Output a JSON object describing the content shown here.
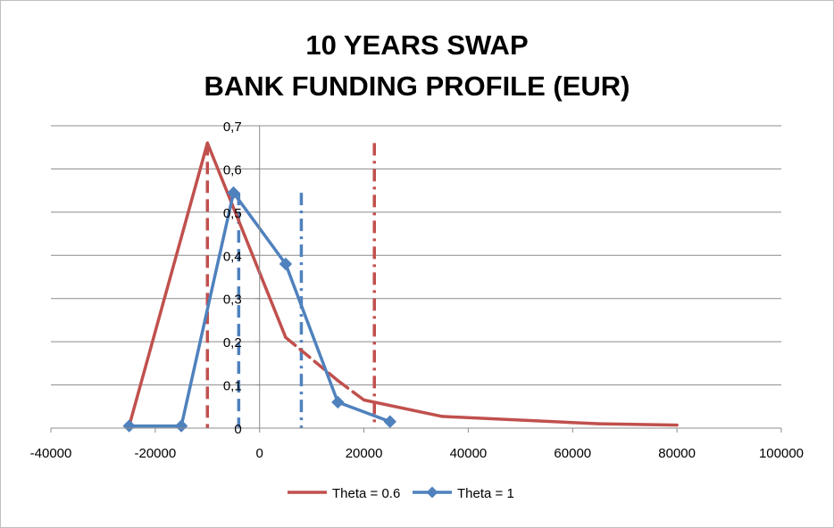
{
  "chart_data": {
    "type": "line",
    "title_lines": [
      "10 YEARS SWAP",
      "BANK FUNDING PROFILE (EUR)"
    ],
    "xlabel": "",
    "ylabel": "",
    "xlim": [
      -40000,
      100000
    ],
    "ylim": [
      0,
      0.7
    ],
    "x_ticks": [
      -40000,
      -20000,
      0,
      20000,
      40000,
      60000,
      80000,
      100000
    ],
    "x_tick_labels": [
      "-40000",
      "-20000",
      "0",
      "20000",
      "40000",
      "60000",
      "80000",
      "100000"
    ],
    "y_ticks": [
      0,
      0.1,
      0.2,
      0.3,
      0.4,
      0.5,
      0.6,
      0.7
    ],
    "y_tick_labels": [
      "0",
      "0,1",
      "0,2",
      "0,3",
      "0,4",
      "0,5",
      "0,6",
      "0,7"
    ],
    "grid": "horizontal",
    "legend_position": "bottom",
    "series": [
      {
        "name": "Theta = 0.6",
        "color": "#c0504d",
        "marker": "none",
        "points": [
          [
            -25000,
            0.005
          ],
          [
            -10000,
            0.66
          ],
          [
            5000,
            0.21
          ],
          [
            15000,
            0.11
          ],
          [
            20000,
            0.065
          ],
          [
            35000,
            0.027
          ],
          [
            65000,
            0.01
          ],
          [
            80000,
            0.007
          ]
        ],
        "dashed_between": [
          [
            5000,
            20000
          ]
        ]
      },
      {
        "name": "Theta = 1",
        "color": "#4f81bd",
        "marker": "diamond",
        "points": [
          [
            -25000,
            0.005
          ],
          [
            -15000,
            0.005
          ],
          [
            -5000,
            0.545
          ],
          [
            5000,
            0.38
          ],
          [
            15000,
            0.06
          ],
          [
            25000,
            0.015
          ]
        ]
      }
    ],
    "vertical_lines": [
      {
        "x": -10000,
        "y_top": 0.66,
        "color": "#c0504d",
        "style": "dashed"
      },
      {
        "x": 22000,
        "y_top": 0.66,
        "color": "#c0504d",
        "style": "dashdot"
      },
      {
        "x": -4000,
        "y_top": 0.545,
        "color": "#4f81bd",
        "style": "dashed"
      },
      {
        "x": 8000,
        "y_top": 0.545,
        "color": "#4f81bd",
        "style": "dashdot"
      }
    ]
  }
}
